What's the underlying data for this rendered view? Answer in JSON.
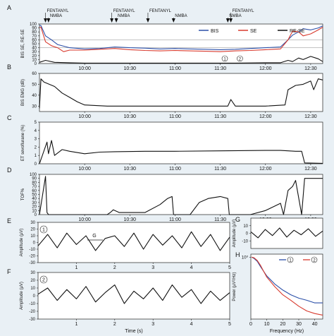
{
  "colors": {
    "background": "#e9f0f5",
    "bis": "#2b4fa8",
    "se": "#d83a2e",
    "re_se": "#111111",
    "spectrum_1": "#2b4fa8",
    "spectrum_2": "#d83a2e"
  },
  "drug_events": [
    {
      "label": "FENTANYL",
      "time": "09:34"
    },
    {
      "label": "NMBA",
      "time": "09:36"
    },
    {
      "label": "FENTANYL",
      "time": "10:18"
    },
    {
      "label": "NMBA",
      "time": "10:21"
    },
    {
      "label": "FENTANYL",
      "time": "10:42"
    },
    {
      "label": "NMBA",
      "time": "10:59"
    },
    {
      "label": "NMBA",
      "time": "11:35"
    },
    {
      "label": "FENTANYL",
      "time": "11:37"
    }
  ],
  "chart_data": [
    {
      "panel": "A",
      "type": "line",
      "ylabel": "BIS SE, RE-SE",
      "ylim": [
        0,
        100
      ],
      "yticks": [
        0,
        10,
        20,
        30,
        40,
        50,
        60,
        70,
        80,
        90,
        100
      ],
      "xticks": [
        "10:00",
        "10:30",
        "11:00",
        "11:30",
        "12:00",
        "12:30"
      ],
      "xlim_time": [
        "09:30",
        "12:38"
      ],
      "legend": [
        "BIS",
        "SE",
        "RE-SE"
      ],
      "legend_position": "top-right",
      "markers": [
        {
          "label": "1",
          "time": "11:33"
        },
        {
          "label": "2",
          "time": "11:43"
        }
      ],
      "series": [
        {
          "name": "BIS",
          "x": [
            "09:30",
            "09:31",
            "09:34",
            "09:38",
            "09:42",
            "09:50",
            "10:00",
            "10:10",
            "10:20",
            "10:30",
            "10:40",
            "10:50",
            "11:00",
            "11:10",
            "11:20",
            "11:30",
            "11:40",
            "11:50",
            "12:00",
            "12:10",
            "12:15",
            "12:18",
            "12:22",
            "12:25",
            "12:30",
            "12:35",
            "12:38"
          ],
          "values": [
            96,
            96,
            70,
            60,
            48,
            40,
            37,
            38,
            42,
            40,
            39,
            37,
            38,
            37,
            36,
            35,
            36,
            38,
            40,
            42,
            60,
            72,
            80,
            88,
            85,
            90,
            95
          ]
        },
        {
          "name": "SE",
          "x": [
            "09:30",
            "09:31",
            "09:34",
            "09:38",
            "09:42",
            "09:46",
            "09:50",
            "10:00",
            "10:10",
            "10:20",
            "10:30",
            "10:40",
            "10:50",
            "11:00",
            "11:10",
            "11:20",
            "11:30",
            "11:40",
            "11:50",
            "12:00",
            "12:10",
            "12:15",
            "12:18",
            "12:22",
            "12:25",
            "12:30",
            "12:35",
            "12:38"
          ],
          "values": [
            92,
            92,
            55,
            45,
            40,
            30,
            34,
            34,
            36,
            38,
            35,
            33,
            32,
            33,
            32,
            31,
            30,
            32,
            33,
            35,
            37,
            60,
            82,
            80,
            70,
            75,
            85,
            92
          ]
        },
        {
          "name": "RE-SE",
          "x": [
            "09:30",
            "09:34",
            "09:40",
            "09:50",
            "10:00",
            "10:30",
            "11:00",
            "11:30",
            "11:40",
            "12:00",
            "12:10",
            "12:15",
            "12:18",
            "12:22",
            "12:25",
            "12:30",
            "12:35",
            "12:38"
          ],
          "values": [
            3,
            8,
            3,
            2,
            1,
            1,
            1,
            1,
            1,
            2,
            2,
            8,
            5,
            14,
            10,
            18,
            12,
            5
          ]
        }
      ]
    },
    {
      "panel": "B",
      "type": "line",
      "ylabel": "BIS EMG (dB)",
      "ylim": [
        25,
        60
      ],
      "yticks": [
        30,
        40,
        50,
        60
      ],
      "xticks": [
        "10:00",
        "10:30",
        "11:00",
        "11:30",
        "12:00",
        "12:30"
      ],
      "series": [
        {
          "name": "",
          "x": [
            "09:30",
            "09:31",
            "09:33",
            "09:40",
            "09:45",
            "09:50",
            "09:55",
            "10:00",
            "10:15",
            "10:30",
            "11:00",
            "11:20",
            "11:35",
            "11:37",
            "11:40",
            "12:00",
            "12:13",
            "12:15",
            "12:20",
            "12:25",
            "12:30",
            "12:32",
            "12:35",
            "12:38"
          ],
          "values": [
            28,
            55,
            52,
            48,
            42,
            38,
            34,
            31,
            30,
            30,
            30,
            30,
            30,
            36,
            30,
            30,
            31,
            45,
            49,
            50,
            53,
            45,
            55,
            54
          ]
        }
      ]
    },
    {
      "panel": "C",
      "type": "line",
      "ylabel": "ET sevoflurane (%)",
      "ylim": [
        0,
        5
      ],
      "yticks": [
        0,
        1,
        2,
        3,
        4,
        5
      ],
      "xticks": [
        "10:00",
        "10:30",
        "11:00",
        "11:30",
        "12:00",
        "12:30"
      ],
      "series": [
        {
          "name": "",
          "x": [
            "09:30",
            "09:35",
            "09:36",
            "09:38",
            "09:40",
            "09:45",
            "09:50",
            "10:00",
            "10:10",
            "10:20",
            "10:40",
            "11:00",
            "11:30",
            "12:00",
            "12:10",
            "12:20",
            "12:24",
            "12:26",
            "12:38"
          ],
          "values": [
            0,
            2.6,
            1.2,
            2.8,
            1.0,
            1.7,
            1.5,
            1.2,
            1.4,
            1.45,
            1.5,
            1.5,
            1.55,
            1.6,
            1.6,
            1.5,
            1.5,
            0.1,
            0.05
          ]
        }
      ]
    },
    {
      "panel": "D",
      "type": "line",
      "ylabel": "TOF%",
      "ylim": [
        0,
        100
      ],
      "yticks": [
        0,
        10,
        20,
        30,
        40,
        50,
        60,
        70,
        80,
        90,
        100
      ],
      "xticks": [
        "10:00",
        "10:30",
        "11:00",
        "11:30",
        "12:00",
        "12:30"
      ],
      "series": [
        {
          "name": "",
          "x": [
            "09:30",
            "09:34",
            "09:35",
            "09:36",
            "10:15",
            "10:17",
            "10:19",
            "10:23",
            "10:40",
            "10:50",
            "10:55",
            "10:58",
            "10:59",
            "11:10",
            "11:16",
            "11:22",
            "11:30",
            "11:35",
            "11:36",
            "11:50",
            "12:00",
            "12:10",
            "12:12",
            "12:15",
            "12:18",
            "12:20",
            "12:24",
            "12:26",
            "12:38"
          ],
          "values": [
            0,
            95,
            5,
            0,
            0,
            5,
            12,
            5,
            5,
            25,
            40,
            45,
            0,
            0,
            30,
            40,
            45,
            40,
            0,
            0,
            10,
            28,
            0,
            60,
            70,
            85,
            0,
            90,
            90
          ]
        }
      ]
    },
    {
      "panel": "E",
      "type": "line",
      "ylabel": "Amplitude (µV)",
      "ylim": [
        -30,
        30
      ],
      "yticks": [
        -30,
        -20,
        -10,
        0,
        10,
        20,
        30
      ],
      "xticks": [
        "1",
        "2",
        "3",
        "4",
        "5"
      ],
      "xlim": [
        0,
        5
      ],
      "annotations": [
        "1",
        "G"
      ],
      "series": [
        {
          "name": "",
          "x": [
            0,
            0.25,
            0.5,
            0.75,
            1.0,
            1.25,
            1.5,
            1.75,
            2.0,
            2.25,
            2.5,
            2.75,
            3.0,
            3.25,
            3.5,
            3.75,
            4.0,
            4.25,
            4.5,
            4.75,
            5.0
          ],
          "values": [
            -5,
            12,
            -8,
            14,
            -3,
            10,
            -12,
            6,
            10,
            -6,
            14,
            -10,
            12,
            -4,
            10,
            -8,
            16,
            -6,
            12,
            -12,
            8
          ]
        }
      ]
    },
    {
      "panel": "F",
      "type": "line",
      "ylabel": "Amplitude (µV)",
      "ylim": [
        -30,
        30
      ],
      "yticks": [
        -30,
        -20,
        -10,
        0,
        10,
        20,
        30
      ],
      "xticks": [
        "1",
        "2",
        "3",
        "4",
        "5"
      ],
      "xlim": [
        0,
        5
      ],
      "xlabel": "Time (s)",
      "annotations": [
        "2"
      ],
      "series": [
        {
          "name": "",
          "x": [
            0,
            0.25,
            0.5,
            0.75,
            1.0,
            1.25,
            1.5,
            1.75,
            2.0,
            2.25,
            2.5,
            2.75,
            3.0,
            3.25,
            3.5,
            3.75,
            4.0,
            4.25,
            4.5,
            4.75,
            5.0
          ],
          "values": [
            2,
            10,
            -6,
            8,
            -4,
            12,
            -8,
            4,
            14,
            -10,
            6,
            -4,
            10,
            -6,
            14,
            -2,
            8,
            -10,
            6,
            -6,
            4
          ]
        }
      ]
    },
    {
      "panel": "G",
      "type": "line",
      "ylabel": "Amplitude (µV)",
      "ylim": [
        -20,
        20
      ],
      "yticks": [
        -10,
        0,
        10
      ],
      "series": [
        {
          "name": "",
          "x": [
            0,
            0.1,
            0.2,
            0.3,
            0.4,
            0.5,
            0.6,
            0.7,
            0.8,
            0.9,
            1.0
          ],
          "values": [
            2,
            -6,
            5,
            -3,
            7,
            -5,
            4,
            -2,
            6,
            -4,
            3
          ]
        }
      ]
    },
    {
      "panel": "H",
      "type": "line",
      "ylabel": "Power (µV²/Hz)",
      "xlabel": "Frequency (Hz)",
      "xlim": [
        0,
        45
      ],
      "xticks": [
        0,
        10,
        20,
        30,
        40
      ],
      "yscale": "log",
      "ytick_labels": [
        "10⁰"
      ],
      "legend": [
        "1",
        "2"
      ],
      "legend_position": "top-right",
      "series": [
        {
          "name": "1",
          "x": [
            0.5,
            2,
            4,
            6,
            8,
            10,
            15,
            20,
            25,
            30,
            35,
            40,
            45
          ],
          "values": [
            1.0,
            0.9,
            0.7,
            0.45,
            0.3,
            0.2,
            0.1,
            0.06,
            0.04,
            0.03,
            0.025,
            0.02,
            0.02
          ]
        },
        {
          "name": "2",
          "x": [
            0.5,
            2,
            4,
            6,
            8,
            10,
            15,
            20,
            25,
            30,
            35,
            40,
            45
          ],
          "values": [
            1.0,
            0.95,
            0.75,
            0.5,
            0.3,
            0.18,
            0.08,
            0.04,
            0.025,
            0.015,
            0.01,
            0.008,
            0.007
          ]
        }
      ]
    }
  ]
}
